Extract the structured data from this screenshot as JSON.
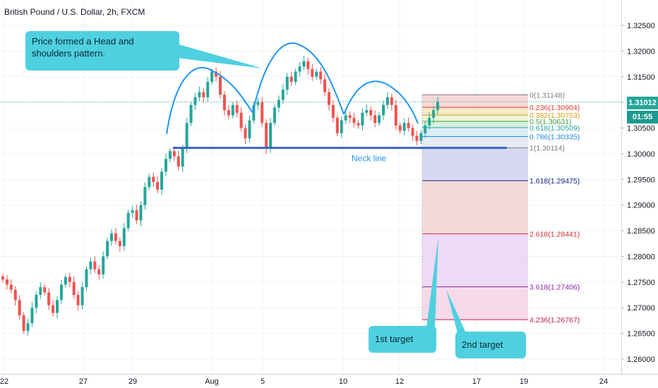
{
  "header": {
    "title": "British Pound / U.S. Dollar, 2h, FXCM"
  },
  "callouts": {
    "pattern": "Price formed a Head and shoulders pattern.",
    "neck": "Neck line",
    "target1": "1st target",
    "target2": "2nd target"
  },
  "price_axis": {
    "last_price": "1.31012",
    "countdown": "01:55"
  },
  "colors": {
    "up": "#26a69a",
    "down": "#ef5350",
    "annotation": "#2196f3",
    "neck": "#3d62c8",
    "callout": "#4fd0e0"
  },
  "chart_data": {
    "type": "candlestick",
    "symbol": "British Pound / U.S. Dollar, 2h, FXCM",
    "ylim": [
      1.26,
      1.3285
    ],
    "y_ticks": [
      "1.26000",
      "1.26500",
      "1.27000",
      "1.27500",
      "1.28000",
      "1.28500",
      "1.29000",
      "1.29500",
      "1.30000",
      "1.30500",
      "1.31000",
      "1.31500",
      "1.32000",
      "1.32500"
    ],
    "x_ticks": [
      "22",
      "27",
      "29",
      "Aug",
      "5",
      "10",
      "12",
      "17",
      "19",
      "24"
    ],
    "series_approx_close": [
      1.2755,
      1.2745,
      1.2735,
      1.2715,
      1.2685,
      1.2655,
      1.267,
      1.27,
      1.2725,
      1.274,
      1.273,
      1.2705,
      1.269,
      1.2715,
      1.2745,
      1.276,
      1.275,
      1.2725,
      1.2705,
      1.274,
      1.2775,
      1.279,
      1.2775,
      1.2765,
      1.28,
      1.283,
      1.2845,
      1.283,
      1.282,
      1.2855,
      1.2885,
      1.289,
      1.287,
      1.29,
      1.2935,
      1.2955,
      1.2945,
      1.293,
      1.2965,
      1.299,
      1.3005,
      1.2995,
      1.2975,
      1.301,
      1.306,
      1.3095,
      1.311,
      1.312,
      1.311,
      1.314,
      1.316,
      1.315,
      1.3115,
      1.3085,
      1.3075,
      1.3095,
      1.308,
      1.305,
      1.303,
      1.3065,
      1.3095,
      1.31,
      1.306,
      1.301,
      1.306,
      1.309,
      1.3105,
      1.3125,
      1.315,
      1.314,
      1.316,
      1.317,
      1.318,
      1.3165,
      1.315,
      1.316,
      1.3145,
      1.312,
      1.3095,
      1.307,
      1.304,
      1.3065,
      1.3075,
      1.307,
      1.306,
      1.3055,
      1.308,
      1.3085,
      1.3075,
      1.306,
      1.3075,
      1.3095,
      1.311,
      1.3095,
      1.3055,
      1.3045,
      1.306,
      1.305,
      1.3035,
      1.3025,
      1.304,
      1.3055,
      1.307,
      1.3085,
      1.3101
    ],
    "pattern": "head-and-shoulders",
    "neckline": 1.30114,
    "fibonacci": [
      {
        "level": "0",
        "price": 1.31148,
        "label": "0(1.31148)",
        "color": "#787b86"
      },
      {
        "level": "0.236",
        "price": 1.30904,
        "label": "0.236(1.30904)",
        "color": "#e53935"
      },
      {
        "level": "0.382",
        "price": 1.30753,
        "label": "0.382(1.30753)",
        "color": "#d4a017"
      },
      {
        "level": "0.5",
        "price": 1.30631,
        "label": "0.5(1.30631)",
        "color": "#43a047"
      },
      {
        "level": "0.618",
        "price": 1.30509,
        "label": "0.618(1.30509)",
        "color": "#26a69a"
      },
      {
        "level": "0.786",
        "price": 1.30335,
        "label": "0.786(1.30335)",
        "color": "#1e88e5"
      },
      {
        "level": "1",
        "price": 1.30114,
        "label": "1(1.30114)",
        "color": "#787b86"
      },
      {
        "level": "1.618",
        "price": 1.29475,
        "label": "1.618(1.29475)",
        "color": "#1a237e"
      },
      {
        "level": "2.618",
        "price": 1.28441,
        "label": "2.618(1.28441)",
        "color": "#d32f2f"
      },
      {
        "level": "3.618",
        "price": 1.27406,
        "label": "3.618(1.27406)",
        "color": "#8e24aa"
      },
      {
        "level": "4.236",
        "price": 1.26767,
        "label": "4.236(1.26767)",
        "color": "#c2185b"
      }
    ],
    "last_price": 1.31012
  }
}
